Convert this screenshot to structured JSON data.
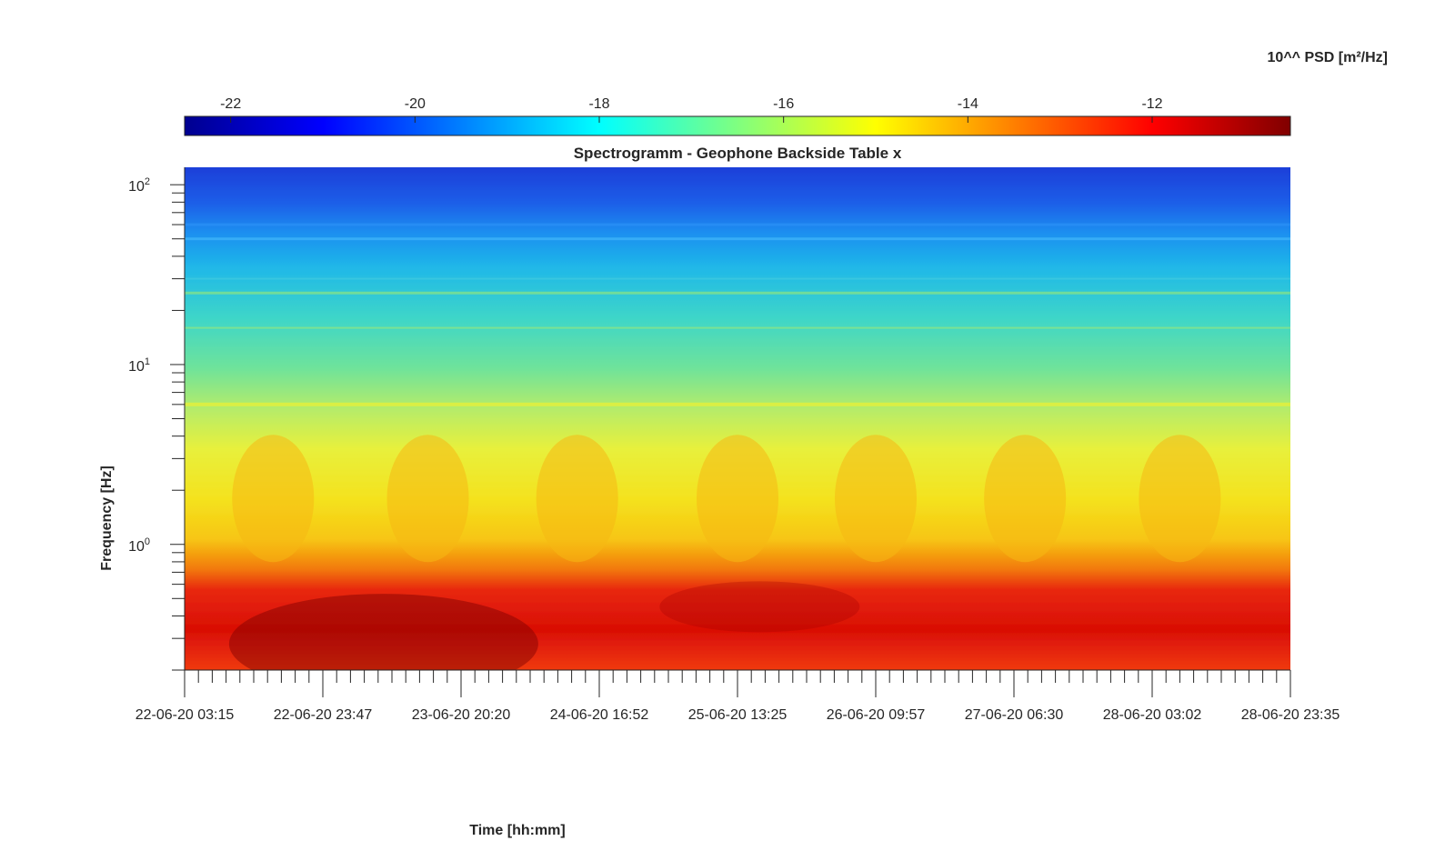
{
  "chart_data": {
    "type": "heatmap",
    "title": "Spectrogramm - Geophone Backside Table x",
    "xlabel": "Time [hh:mm]",
    "ylabel": "Frequency [Hz]",
    "x_ticks": [
      "22-06-20 03:15",
      "22-06-20 23:47",
      "23-06-20 20:20",
      "24-06-20 16:52",
      "25-06-20 13:25",
      "26-06-20 09:57",
      "27-06-20 06:30",
      "28-06-20 03:02",
      "28-06-20 23:35"
    ],
    "y_scale": "log",
    "y_ticks": [
      {
        "base": "10",
        "exp": "0",
        "value": 1
      },
      {
        "base": "10",
        "exp": "1",
        "value": 10
      },
      {
        "base": "10",
        "exp": "2",
        "value": 100
      }
    ],
    "ylim": [
      0.2,
      125
    ],
    "colorbar": {
      "label": "10^^ PSD [m²/Hz]",
      "ticks": [
        "-22",
        "-20",
        "-18",
        "-16",
        "-14",
        "-12"
      ],
      "range": [
        -22.5,
        -10.5
      ],
      "colormap": "jet"
    },
    "intensity_profile": [
      {
        "freq_hz": 100,
        "log10_psd": -21.0
      },
      {
        "freq_hz": 50,
        "log10_psd": -19.8
      },
      {
        "freq_hz": 20,
        "log10_psd": -17.5
      },
      {
        "freq_hz": 10,
        "log10_psd": -16.8
      },
      {
        "freq_hz": 6,
        "log10_psd": -15.5
      },
      {
        "freq_hz": 2,
        "log10_psd": -15.0
      },
      {
        "freq_hz": 1,
        "log10_psd": -14.5
      },
      {
        "freq_hz": 0.5,
        "log10_psd": -12.0
      },
      {
        "freq_hz": 0.3,
        "log10_psd": -11.8
      }
    ]
  }
}
